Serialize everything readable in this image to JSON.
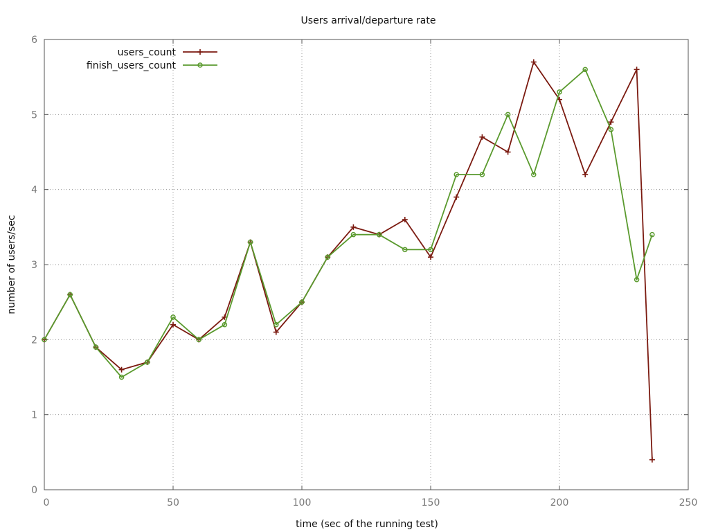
{
  "chart_data": {
    "type": "line",
    "title": "Users arrival/departure rate",
    "xlabel": "time (sec of the running test)",
    "ylabel": "number of users/sec",
    "xlim": [
      0,
      250
    ],
    "ylim": [
      0,
      6
    ],
    "x_ticks": [
      0,
      50,
      100,
      150,
      200,
      250
    ],
    "y_ticks": [
      0,
      1,
      2,
      3,
      4,
      5,
      6
    ],
    "grid": true,
    "legend_position": "top-left",
    "series": [
      {
        "name": "users_count",
        "color": "#7b1a10",
        "marker": "plus",
        "x": [
          0,
          10,
          20,
          30,
          40,
          50,
          60,
          70,
          80,
          90,
          100,
          110,
          120,
          130,
          140,
          150,
          160,
          170,
          180,
          190,
          200,
          210,
          220,
          230,
          236
        ],
        "y": [
          2.0,
          2.6,
          1.9,
          1.6,
          1.7,
          2.2,
          2.0,
          2.3,
          3.3,
          2.1,
          2.5,
          3.1,
          3.5,
          3.4,
          3.6,
          3.1,
          3.9,
          4.7,
          4.5,
          5.7,
          5.2,
          4.2,
          4.9,
          5.6,
          0.4
        ]
      },
      {
        "name": "finish_users_count",
        "color": "#5a9a2e",
        "marker": "circle",
        "x": [
          0,
          10,
          20,
          30,
          40,
          50,
          60,
          70,
          80,
          90,
          100,
          110,
          120,
          130,
          140,
          150,
          160,
          170,
          180,
          190,
          200,
          210,
          220,
          230,
          236
        ],
        "y": [
          2.0,
          2.6,
          1.9,
          1.5,
          1.7,
          2.3,
          2.0,
          2.2,
          3.3,
          2.2,
          2.5,
          3.1,
          3.4,
          3.4,
          3.2,
          3.2,
          4.2,
          4.2,
          5.0,
          4.2,
          5.3,
          5.6,
          4.8,
          2.8,
          3.4
        ]
      }
    ]
  }
}
